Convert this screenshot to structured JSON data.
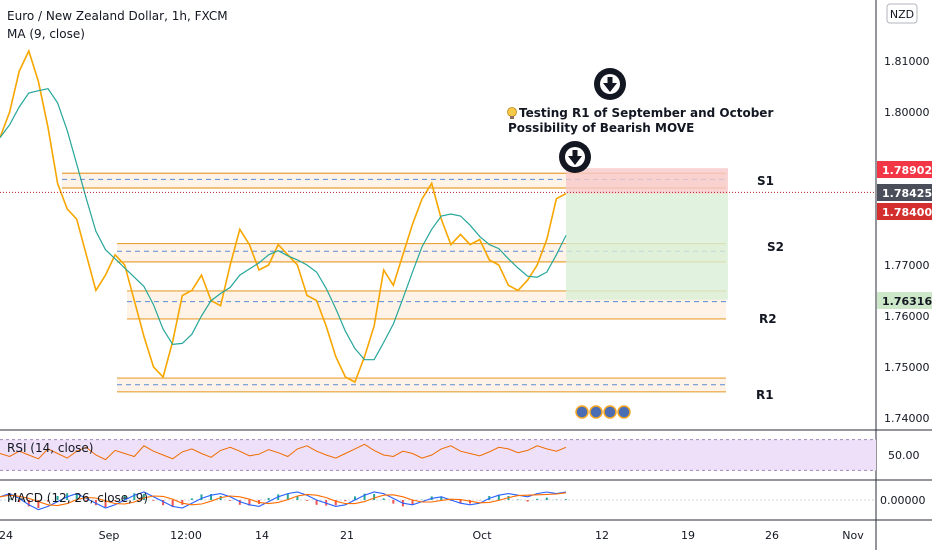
{
  "header": {
    "title": "Euro / New Zealand Dollar, 1h, FXCM",
    "indicator": "MA (9, close)",
    "currency_badge": "NZD"
  },
  "annotation": {
    "line1": "Testing R1 of September and October",
    "line2": "Possibility of Bearish MOVE",
    "bulb_icon": "lightbulb-icon",
    "arrow_icon": "down-arrow-circle-icon"
  },
  "colors": {
    "candle_line": "#f7a600",
    "ma_line": "#2962ff",
    "zone_fill": "#fde9d2",
    "zone_border": "#e8a23a",
    "dashed_mid": "#5b8bd6",
    "stop_fill": "#f8c9c9",
    "target_fill": "#d9efd6",
    "current_price_bg": "#4a4e5a",
    "stop_tag_bg": "#f23645",
    "entry_tag_bg": "#d32f2f",
    "target_tag_bg": "#cde8c8",
    "rsi_band": "#efe0fa",
    "rsi_line": "#ef6c00",
    "macd_line": "#2962ff",
    "signal_line": "#ff6d00"
  },
  "chart_data": {
    "type": "line",
    "symbol": "EURNZD",
    "timeframe": "1h",
    "x_ticks": [
      "24",
      "Sep",
      "12:00",
      "14",
      "21",
      "Oct",
      "12",
      "19",
      "26",
      "Nov"
    ],
    "y_ticks": [
      "1.81000",
      "1.80000",
      "1.78902",
      "1.78425",
      "1.78400",
      "1.77000",
      "1.76316",
      "1.76000",
      "1.75000",
      "1.74000"
    ],
    "ylim": [
      1.738,
      1.822
    ],
    "price_series": [
      1.795,
      1.8,
      1.808,
      1.812,
      1.806,
      1.797,
      1.786,
      1.781,
      1.779,
      1.772,
      1.765,
      1.768,
      1.772,
      1.77,
      1.763,
      1.756,
      1.75,
      1.748,
      1.755,
      1.764,
      1.765,
      1.768,
      1.763,
      1.762,
      1.77,
      1.777,
      1.774,
      1.769,
      1.77,
      1.774,
      1.772,
      1.77,
      1.764,
      1.763,
      1.758,
      1.752,
      1.748,
      1.747,
      1.752,
      1.758,
      1.769,
      1.766,
      1.772,
      1.778,
      1.783,
      1.786,
      1.779,
      1.774,
      1.776,
      1.774,
      1.775,
      1.771,
      1.77,
      1.766,
      1.765,
      1.767,
      1.77,
      1.775,
      1.783,
      1.784
    ],
    "zones": [
      {
        "label": "S1",
        "top": 1.788,
        "bottom": 1.7851,
        "mid": 1.7868
      },
      {
        "label": "S2",
        "top": 1.7742,
        "bottom": 1.7706,
        "mid": 1.7727
      },
      {
        "label": "R2",
        "top": 1.7649,
        "bottom": 1.7594,
        "mid": 1.7628
      },
      {
        "label": "R1",
        "top": 1.7478,
        "bottom": 1.7451,
        "mid": 1.7465
      }
    ],
    "position": {
      "stop": 1.789,
      "entry": 1.784,
      "target": 1.7632
    },
    "price_tags": [
      {
        "value": "1.78902",
        "kind": "stop"
      },
      {
        "value": "1.78425",
        "kind": "current"
      },
      {
        "value": "1.78400",
        "kind": "entry"
      },
      {
        "value": "1.76316",
        "kind": "target"
      }
    ],
    "rsi": {
      "label": "RSI (14, close)",
      "tick": "50.00",
      "ylim": [
        20,
        80
      ],
      "band": [
        30,
        70
      ],
      "values": [
        52,
        48,
        55,
        50,
        45,
        58,
        52,
        46,
        55,
        60,
        50,
        44,
        56,
        52,
        48,
        62,
        55,
        50,
        45,
        54,
        58,
        52,
        47,
        56,
        60,
        55,
        49,
        51,
        57,
        53,
        48,
        58,
        62,
        55,
        50,
        46,
        52,
        58,
        64,
        56,
        50,
        48,
        55,
        52,
        46,
        50,
        58,
        62,
        55,
        52,
        49,
        54,
        60,
        58,
        53,
        56,
        62,
        58,
        55,
        60
      ]
    },
    "macd": {
      "label": "MACD (12, 26, close, 9)",
      "tick": "0.00000",
      "ylim": [
        -1,
        1
      ],
      "values": [
        0.2,
        0.4,
        0.1,
        -0.3,
        -0.6,
        -0.4,
        -0.1,
        0.2,
        0.4,
        0.1,
        -0.2,
        -0.5,
        -0.3,
        0.0,
        0.3,
        0.5,
        0.2,
        -0.1,
        -0.4,
        -0.5,
        -0.2,
        0.1,
        0.3,
        0.4,
        0.2,
        -0.1,
        -0.3,
        -0.4,
        -0.1,
        0.2,
        0.4,
        0.5,
        0.3,
        0.0,
        -0.2,
        -0.4,
        -0.3,
        0.0,
        0.3,
        0.5,
        0.4,
        0.1,
        -0.2,
        -0.3,
        -0.1,
        0.1,
        0.2,
        0.0,
        -0.2,
        -0.3,
        -0.2,
        0.1,
        0.3,
        0.4,
        0.3,
        0.2,
        0.4,
        0.5,
        0.4,
        0.5
      ]
    }
  }
}
